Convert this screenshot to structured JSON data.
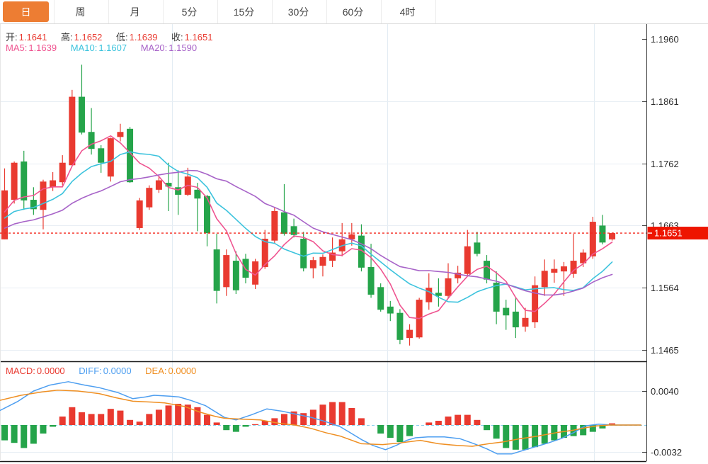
{
  "tabs": {
    "items": [
      {
        "label": "日",
        "active": true
      },
      {
        "label": "周",
        "active": false
      },
      {
        "label": "月",
        "active": false
      },
      {
        "label": "5分",
        "active": false
      },
      {
        "label": "15分",
        "active": false
      },
      {
        "label": "30分",
        "active": false
      },
      {
        "label": "60分",
        "active": false
      },
      {
        "label": "4时",
        "active": false
      }
    ]
  },
  "legend_ohlc": {
    "open_label": "开:",
    "open_value": "1.1641",
    "high_label": "高:",
    "high_value": "1.1652",
    "low_label": "低:",
    "low_value": "1.1639",
    "close_label": "收:",
    "close_value": "1.1651"
  },
  "legend_ma": {
    "ma5": {
      "label": "MA5:",
      "value": "1.1639",
      "color": "#ef5490"
    },
    "ma10": {
      "label": "MA10:",
      "value": "1.1607",
      "color": "#3cc3dd"
    },
    "ma20": {
      "label": "MA20:",
      "value": "1.1590",
      "color": "#a763c8"
    }
  },
  "legend_macd": {
    "macd": {
      "label": "MACD:",
      "value": "0.0000",
      "color": "#e93a30"
    },
    "diff": {
      "label": "DIFF:",
      "value": "0.0000",
      "color": "#4d9ef0"
    },
    "dea": {
      "label": "DEA:",
      "value": "0.0000",
      "color": "#ef8f22"
    }
  },
  "chart_data": {
    "type": "candlestick",
    "panels": [
      "price",
      "macd"
    ],
    "price_axis": {
      "ticks": [
        "1.1960",
        "1.1861",
        "1.1762",
        "1.1663",
        "1.1564",
        "1.1465"
      ],
      "range": [
        1.1465,
        1.196
      ]
    },
    "macd_axis": {
      "ticks": [
        "0.0040",
        "-0.0032"
      ],
      "tick_values": [
        0.004,
        -0.0032
      ]
    },
    "last_price": 1.1651,
    "last_price_text": "1.1651",
    "colors": {
      "up": "#e93a30",
      "down": "#25a44a",
      "ma5": "#ef5490",
      "ma10": "#3cc3dd",
      "ma20": "#a763c8",
      "diff": "#4d9ef0",
      "dea": "#ef8f22",
      "grid": "#e8eef4",
      "vgrid": "#e3ecf3",
      "axis": "#2a2a2a",
      "label": "#2b2b2b",
      "last_price_line": "#f3281d",
      "last_price_tag_bg": "#ee1500",
      "macd_zero_dash": "#8ed2ee",
      "accent": "#ed7d33"
    },
    "candles": {
      "columns": [
        "open",
        "high",
        "low",
        "close"
      ],
      "rows": [
        [
          1.1641,
          1.1754,
          1.1641,
          1.1719
        ],
        [
          1.1704,
          1.1765,
          1.1698,
          1.1763
        ],
        [
          1.1765,
          1.1782,
          1.1688,
          1.1703
        ],
        [
          1.1704,
          1.1724,
          1.168,
          1.1689
        ],
        [
          1.1688,
          1.1736,
          1.1657,
          1.1733
        ],
        [
          1.1724,
          1.1748,
          1.1718,
          1.1735
        ],
        [
          1.1732,
          1.1775,
          1.1727,
          1.1763
        ],
        [
          1.1759,
          1.1879,
          1.1759,
          1.1868
        ],
        [
          1.1868,
          1.1919,
          1.1808,
          1.1811
        ],
        [
          1.1812,
          1.185,
          1.1776,
          1.1785
        ],
        [
          1.1786,
          1.1791,
          1.1747,
          1.1763
        ],
        [
          1.1741,
          1.1803,
          1.1733,
          1.1802
        ],
        [
          1.1804,
          1.1825,
          1.1797,
          1.1812
        ],
        [
          1.1817,
          1.182,
          1.1731,
          1.1732
        ],
        [
          1.1659,
          1.1707,
          1.1656,
          1.1703
        ],
        [
          1.1692,
          1.1727,
          1.1688,
          1.1723
        ],
        [
          1.172,
          1.174,
          1.1715,
          1.1735
        ],
        [
          1.1731,
          1.1763,
          1.1686,
          1.1725
        ],
        [
          1.1724,
          1.1751,
          1.168,
          1.1712
        ],
        [
          1.1712,
          1.1755,
          1.171,
          1.1741
        ],
        [
          1.172,
          1.1731,
          1.1654,
          1.1706
        ],
        [
          1.171,
          1.1712,
          1.163,
          1.1651
        ],
        [
          1.1625,
          1.165,
          1.1539,
          1.1559
        ],
        [
          1.1565,
          1.1625,
          1.1551,
          1.1616
        ],
        [
          1.1607,
          1.1622,
          1.1554,
          1.156
        ],
        [
          1.161,
          1.1618,
          1.1571,
          1.158
        ],
        [
          1.1569,
          1.161,
          1.1562,
          1.1606
        ],
        [
          1.1597,
          1.1656,
          1.1594,
          1.1642
        ],
        [
          1.1639,
          1.1692,
          1.1635,
          1.1686
        ],
        [
          1.1684,
          1.1729,
          1.1647,
          1.165
        ],
        [
          1.1662,
          1.1674,
          1.1644,
          1.1648
        ],
        [
          1.1642,
          1.1653,
          1.159,
          1.1595
        ],
        [
          1.1595,
          1.1613,
          1.1579,
          1.1608
        ],
        [
          1.1599,
          1.1617,
          1.1582,
          1.1613
        ],
        [
          1.1607,
          1.1644,
          1.1597,
          1.162
        ],
        [
          1.1622,
          1.1667,
          1.1614,
          1.1641
        ],
        [
          1.1641,
          1.1667,
          1.1631,
          1.1649
        ],
        [
          1.1647,
          1.1665,
          1.159,
          1.1596
        ],
        [
          1.1597,
          1.1634,
          1.1548,
          1.1553
        ],
        [
          1.1565,
          1.1571,
          1.1526,
          1.1529
        ],
        [
          1.1534,
          1.1543,
          1.1511,
          1.1523
        ],
        [
          1.1524,
          1.153,
          1.1474,
          1.1481
        ],
        [
          1.1484,
          1.1506,
          1.1472,
          1.1497
        ],
        [
          1.1485,
          1.1548,
          1.1483,
          1.1545
        ],
        [
          1.1541,
          1.1587,
          1.1529,
          1.1564
        ],
        [
          1.1556,
          1.1579,
          1.1534,
          1.1551
        ],
        [
          1.1551,
          1.1603,
          1.1548,
          1.1579
        ],
        [
          1.1579,
          1.1599,
          1.1571,
          1.1588
        ],
        [
          1.1586,
          1.1656,
          1.1582,
          1.163
        ],
        [
          1.1636,
          1.1653,
          1.1614,
          1.1618
        ],
        [
          1.1607,
          1.1616,
          1.1571,
          1.1577
        ],
        [
          1.1572,
          1.159,
          1.1506,
          1.1526
        ],
        [
          1.1532,
          1.1545,
          1.1497,
          1.152
        ],
        [
          1.1526,
          1.1548,
          1.1484,
          1.1501
        ],
        [
          1.1502,
          1.1532,
          1.1494,
          1.1516
        ],
        [
          1.1509,
          1.1582,
          1.15,
          1.1568
        ],
        [
          1.1565,
          1.1609,
          1.1551,
          1.1591
        ],
        [
          1.1588,
          1.1609,
          1.1572,
          1.1594
        ],
        [
          1.159,
          1.1605,
          1.1551,
          1.1598
        ],
        [
          1.1586,
          1.165,
          1.158,
          1.1607
        ],
        [
          1.1603,
          1.1625,
          1.1597,
          1.162
        ],
        [
          1.1614,
          1.1677,
          1.161,
          1.1669
        ],
        [
          1.1663,
          1.168,
          1.1633,
          1.1636
        ],
        [
          1.1641,
          1.1652,
          1.1639,
          1.1651
        ]
      ]
    },
    "ma_series": [
      {
        "name": "MA5",
        "window": 5,
        "current": 1.1639,
        "color": "#ef5490"
      },
      {
        "name": "MA10",
        "window": 10,
        "current": 1.1607,
        "color": "#3cc3dd"
      },
      {
        "name": "MA20",
        "window": 20,
        "current": 1.159,
        "color": "#a763c8"
      }
    ],
    "ma_seed_closes": [
      1.163,
      1.1628,
      1.1632,
      1.1638,
      1.164,
      1.1645,
      1.1648,
      1.1652,
      1.1655,
      1.1658,
      1.166,
      1.1663,
      1.1665,
      1.1668,
      1.167,
      1.1672,
      1.1675,
      1.1678,
      1.168
    ],
    "macd": {
      "current": {
        "macd": 0.0,
        "diff": 0.0,
        "dea": 0.0
      },
      "histogram": [
        -0.0018,
        -0.0021,
        -0.0027,
        -0.0022,
        -0.001,
        -0.0002,
        0.001,
        0.0021,
        0.0015,
        0.0013,
        0.0013,
        0.0019,
        0.0017,
        0.0006,
        0.0004,
        0.0013,
        0.0018,
        0.0023,
        0.0025,
        0.0024,
        0.0021,
        0.0012,
        0.0003,
        -0.0006,
        -0.0008,
        -0.0002,
        0.0001,
        0.0005,
        0.0008,
        0.0013,
        0.0016,
        0.0014,
        0.0018,
        0.0024,
        0.0027,
        0.0027,
        0.002,
        0.0008,
        0.0,
        -0.001,
        -0.0015,
        -0.002,
        -0.0013,
        0.0,
        0.0003,
        0.0005,
        0.001,
        0.0012,
        0.0012,
        0.0006,
        -0.0006,
        -0.0016,
        -0.0027,
        -0.0029,
        -0.0029,
        -0.0026,
        -0.0022,
        -0.0018,
        -0.0015,
        -0.0013,
        -0.0012,
        -0.0008,
        -0.0004,
        0.0002
      ],
      "diff_points": [
        [
          -0.5,
          0.0017
        ],
        [
          1.4,
          0.0028
        ],
        [
          3.0,
          0.004
        ],
        [
          4.7,
          0.0047
        ],
        [
          6.6,
          0.0051
        ],
        [
          8.3,
          0.0047
        ],
        [
          9.8,
          0.0044
        ],
        [
          11.8,
          0.0038
        ],
        [
          13.3,
          0.0031
        ],
        [
          14.6,
          0.0033
        ],
        [
          15.5,
          0.0035
        ],
        [
          17.1,
          0.0034
        ],
        [
          18.1,
          0.0033
        ],
        [
          19.3,
          0.0029
        ],
        [
          20.8,
          0.0023
        ],
        [
          22.8,
          0.0009
        ],
        [
          24.0,
          0.0006
        ],
        [
          25.6,
          0.0012
        ],
        [
          27.2,
          0.0019
        ],
        [
          28.9,
          0.0016
        ],
        [
          30.1,
          0.0013
        ],
        [
          31.8,
          0.0009
        ],
        [
          33.3,
          0.0004
        ],
        [
          34.8,
          -0.0002
        ],
        [
          35.7,
          -0.0008
        ],
        [
          37.0,
          -0.0017
        ],
        [
          38.2,
          -0.0024
        ],
        [
          39.5,
          -0.0029
        ],
        [
          40.6,
          -0.0024
        ],
        [
          41.7,
          -0.0018
        ],
        [
          42.6,
          -0.0015
        ],
        [
          43.9,
          -0.0014
        ],
        [
          45.6,
          -0.0014
        ],
        [
          47.2,
          -0.0016
        ],
        [
          48.7,
          -0.0022
        ],
        [
          50.0,
          -0.0028
        ],
        [
          51.1,
          -0.0034
        ],
        [
          52.6,
          -0.0034
        ],
        [
          54.6,
          -0.0027
        ],
        [
          56.4,
          -0.0021
        ],
        [
          57.7,
          -0.0016
        ],
        [
          59.0,
          -0.0009
        ],
        [
          60.2,
          -0.0001
        ],
        [
          61.6,
          0.0001
        ],
        [
          63.0,
          0.0
        ],
        [
          66.0,
          0.0
        ]
      ],
      "dea_points": [
        [
          -0.5,
          0.0029
        ],
        [
          1.7,
          0.0035
        ],
        [
          3.9,
          0.0039
        ],
        [
          5.5,
          0.0041
        ],
        [
          7.6,
          0.004
        ],
        [
          9.8,
          0.0037
        ],
        [
          11.6,
          0.0032
        ],
        [
          13.3,
          0.0028
        ],
        [
          15.3,
          0.0027
        ],
        [
          16.6,
          0.0026
        ],
        [
          18.6,
          0.0022
        ],
        [
          20.3,
          0.0015
        ],
        [
          21.9,
          0.001
        ],
        [
          22.8,
          0.0008
        ],
        [
          24.5,
          0.0007
        ],
        [
          26.5,
          0.0006
        ],
        [
          28.5,
          0.0002
        ],
        [
          30.1,
          0.0
        ],
        [
          31.8,
          -0.0004
        ],
        [
          33.3,
          -0.0009
        ],
        [
          34.8,
          -0.0013
        ],
        [
          37.0,
          -0.0022
        ],
        [
          39.2,
          -0.0023
        ],
        [
          41.0,
          -0.0021
        ],
        [
          43.1,
          -0.0018
        ],
        [
          45.0,
          -0.0022
        ],
        [
          46.9,
          -0.0024
        ],
        [
          48.5,
          -0.0025
        ],
        [
          50.2,
          -0.0022
        ],
        [
          51.6,
          -0.002
        ],
        [
          53.5,
          -0.0016
        ],
        [
          55.3,
          -0.0013
        ],
        [
          57.2,
          -0.0009
        ],
        [
          59.0,
          -0.0006
        ],
        [
          60.3,
          -0.0003
        ],
        [
          61.4,
          -0.0001
        ],
        [
          62.7,
          0.0
        ],
        [
          66.0,
          0.0
        ]
      ]
    }
  }
}
